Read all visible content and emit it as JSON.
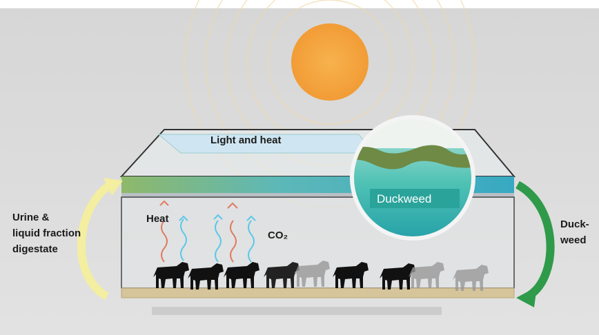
{
  "diagram": {
    "light_label": "Light and heat",
    "duckweed_label": "Duckweed",
    "heat_label": "Heat",
    "co2_label": "CO₂",
    "inflow_label": [
      "Urine &",
      "liquid fraction",
      "digestate"
    ],
    "outflow_label": [
      "Duck-",
      "weed"
    ]
  }
}
